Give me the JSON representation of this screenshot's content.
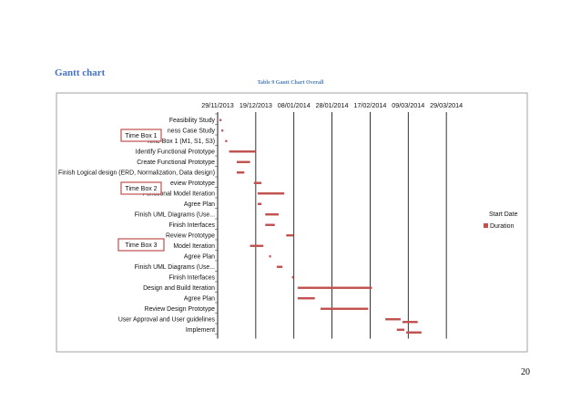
{
  "page": {
    "heading": "Gantt chart",
    "caption": "Table 9 Gantt Chart Overall",
    "page_number": "20"
  },
  "colors": {
    "duration": "#c0504d",
    "frame": "#8c8c8c",
    "box": "#c0504d",
    "gridline": "#000000"
  },
  "time_boxes": [
    "Time Box 1",
    "Time Box 2",
    "Time Box 3"
  ],
  "chart_data": {
    "type": "bar",
    "orientation": "horizontal-stacked",
    "title": "",
    "x_axis_position": "top",
    "xlim": [
      "2013-11-29",
      "2014-04-18"
    ],
    "x_ticks": [
      "29/11/2013",
      "19/12/2013",
      "08/01/2014",
      "28/01/2014",
      "17/02/2014",
      "09/03/2014",
      "29/03/2014"
    ],
    "grid": true,
    "legend": {
      "position": "right",
      "entries": [
        "Start Date",
        "Duration"
      ]
    },
    "categories": [
      "Feasibility Study",
      "ness Case Study",
      "Time Box 1 (M1, S1, S3)",
      "Identify Functional Prototype",
      "Create Functional Prototype",
      "Finish Logical design (ERD, Normalization, Data design)",
      "eview Prototype",
      "Functional Model Iteration",
      "Agree Plan",
      "Finish UML Diagrams (Use...",
      "Finish Interfaces",
      "Review Prototype",
      "Model Iteration",
      "Agree Plan",
      "Finish UML Diagrams (Use...",
      "Finish Interfaces",
      "Design and Build Iteration",
      "Agree Plan",
      "Review Design Prototype",
      "User Approval and User guidelines",
      "Implement"
    ],
    "series": [
      {
        "name": "Start Date",
        "values": [
          "2013-11-30",
          "2013-12-01",
          "2013-12-03",
          "2013-12-05",
          "2013-12-09",
          "2013-12-09",
          "2013-12-18",
          "2013-12-20",
          "2013-12-20",
          "2013-12-24",
          "2013-12-24",
          "2014-01-04",
          "2013-12-16",
          "2013-12-26",
          "2013-12-30",
          "2014-01-07",
          "2014-01-10",
          "2014-01-10",
          "2014-01-22",
          "2014-02-25",
          "2014-03-03"
        ]
      },
      {
        "name": "Duration",
        "values": [
          1,
          1,
          1,
          14,
          7,
          4,
          4,
          14,
          2,
          7,
          5,
          4,
          7,
          1,
          3,
          1,
          39,
          9,
          25,
          8,
          4
        ]
      }
    ],
    "extra_durations": {
      "19": 8,
      "20": 8
    }
  }
}
